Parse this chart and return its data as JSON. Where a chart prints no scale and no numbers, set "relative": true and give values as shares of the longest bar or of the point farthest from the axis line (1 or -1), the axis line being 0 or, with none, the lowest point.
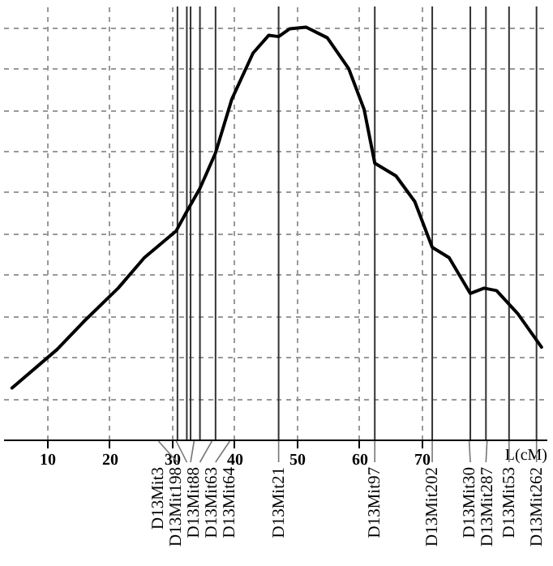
{
  "chart_data": {
    "type": "line",
    "relative": true,
    "xlabel": "L(cM)",
    "x": [
      4.4,
      11.6,
      15.9,
      21.4,
      25.6,
      30.7,
      32.4,
      34.5,
      37.0,
      39.6,
      43.0,
      45.5,
      47.1,
      48.9,
      51.5,
      54.9,
      58.3,
      60.8,
      62.5,
      65.9,
      68.9,
      71.7,
      74.4,
      77.8,
      80.0,
      82.0,
      85.4,
      89.2
    ],
    "series": [
      {
        "color": "#000000",
        "values": [
          0.125,
          0.218,
          0.286,
          0.367,
          0.441,
          0.506,
          0.553,
          0.609,
          0.695,
          0.825,
          0.937,
          0.98,
          0.977,
          0.996,
          1.0,
          0.974,
          0.9,
          0.8,
          0.67,
          0.639,
          0.577,
          0.466,
          0.441,
          0.354,
          0.367,
          0.361,
          0.305,
          0.224
        ]
      }
    ],
    "xlim": [
      3,
      90
    ],
    "xticks": [
      10,
      20,
      30,
      40,
      50,
      60,
      70
    ],
    "grid": true,
    "marker": "none",
    "line_style": "solid",
    "ref_lines": [
      {
        "axis": "x",
        "value": 30.9,
        "label": "D13Mit3"
      },
      {
        "axis": "x",
        "value": 32.4,
        "label": "D13Mit198"
      },
      {
        "axis": "x",
        "value": 33.0,
        "label": "D13Mit88"
      },
      {
        "axis": "x",
        "value": 34.5,
        "label": "D13Mit63"
      },
      {
        "axis": "x",
        "value": 37.0,
        "label": "D13Mit64"
      },
      {
        "axis": "x",
        "value": 47.1,
        "label": "D13Mit21"
      },
      {
        "axis": "x",
        "value": 62.5,
        "label": "D13Mit97"
      },
      {
        "axis": "x",
        "value": 71.7,
        "label": "D13Mit202"
      },
      {
        "axis": "x",
        "value": 77.8,
        "label": "D13Mit30"
      },
      {
        "axis": "x",
        "value": 80.3,
        "label": "D13Mit287"
      },
      {
        "axis": "x",
        "value": 84.0,
        "label": "D13Mit53"
      },
      {
        "axis": "x",
        "value": 88.4,
        "label": "D13Mit262"
      }
    ]
  }
}
